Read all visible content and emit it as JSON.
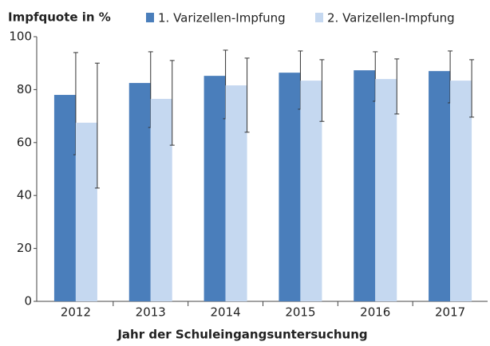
{
  "chart_data": {
    "type": "bar",
    "ylabel": "Impfquote in %",
    "xlabel": "Jahr der Schuleingangsuntersuchung",
    "categories": [
      "2012",
      "2013",
      "2014",
      "2015",
      "2016",
      "2017"
    ],
    "series": [
      {
        "name": "1. Varizellen-Impfung",
        "color": "#4a7ebb",
        "values": [
          78,
          82.5,
          85.2,
          86.4,
          87.3,
          87
        ],
        "err_low": [
          55.4,
          65.7,
          69,
          72.6,
          75.6,
          75
        ],
        "err_high": [
          94,
          94.3,
          94.9,
          94.6,
          94.3,
          94.6
        ]
      },
      {
        "name": "2. Varizellen-Impfung",
        "color": "#c5d8f0",
        "values": [
          67.5,
          76.5,
          81.6,
          83.4,
          84,
          83.4
        ],
        "err_low": [
          42.8,
          59,
          63.9,
          68,
          70.8,
          69.6
        ],
        "err_high": [
          90,
          91,
          91.9,
          91.3,
          91.6,
          91.3
        ]
      }
    ],
    "ylim": [
      0,
      100
    ],
    "yticks": [
      0,
      20,
      40,
      60,
      80,
      100
    ]
  }
}
